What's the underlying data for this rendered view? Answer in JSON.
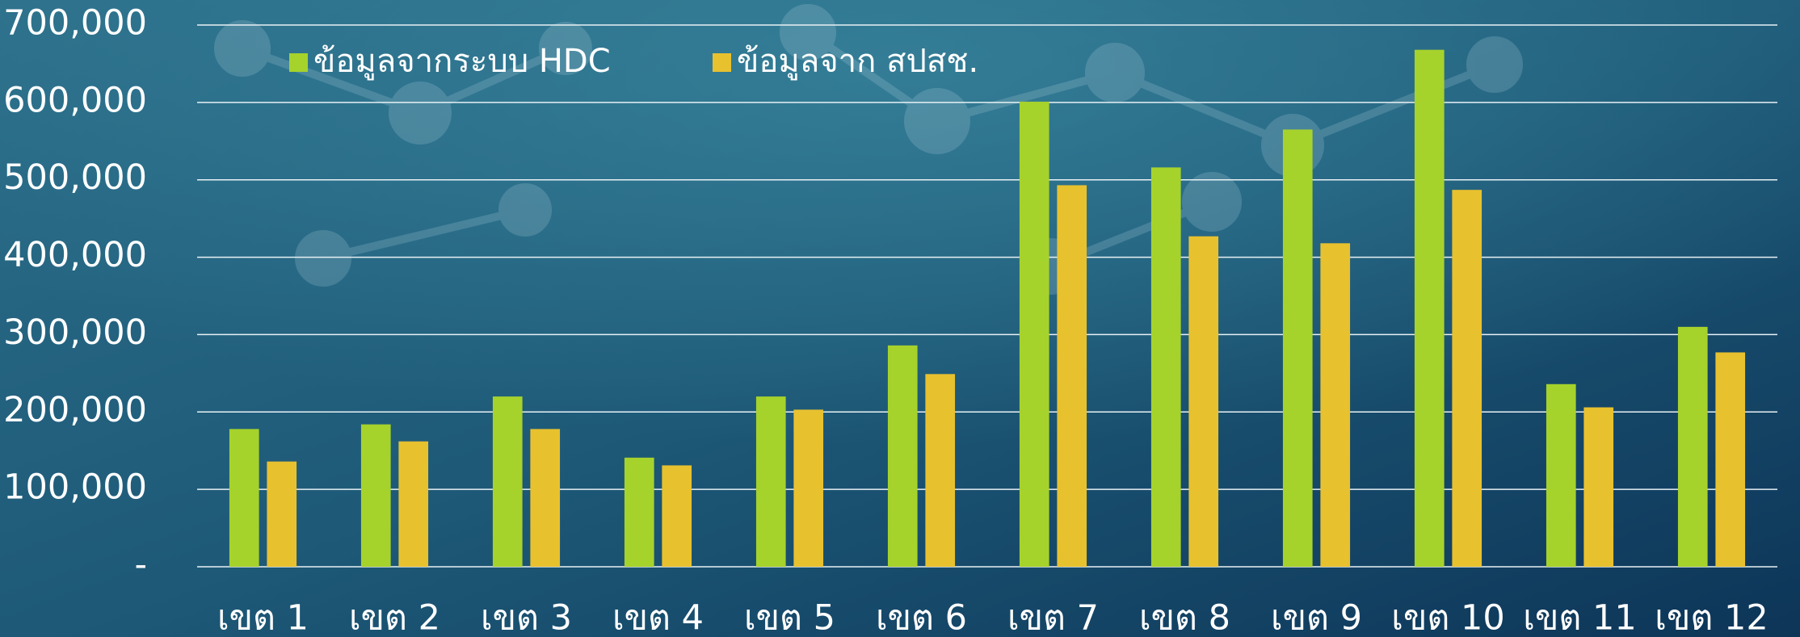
{
  "chart_data": {
    "type": "bar",
    "categories": [
      "เขต 1",
      "เขต 2",
      "เขต 3",
      "เขต 4",
      "เขต 5",
      "เขต 6",
      "เขต 7",
      "เขต 8",
      "เขต 9",
      "เขต 10",
      "เขต 11",
      "เขต 12"
    ],
    "series": [
      {
        "name": "ข้อมูลจากระบบ HDC",
        "color": "#a6d22c",
        "values": [
          178000,
          184000,
          220000,
          141000,
          220000,
          286000,
          601000,
          516000,
          565000,
          668000,
          236000,
          310000
        ]
      },
      {
        "name": "ข้อมูลจาก สปสช.",
        "color": "#e8c12f",
        "values": [
          136000,
          162000,
          178000,
          131000,
          203000,
          249000,
          493000,
          427000,
          418000,
          487000,
          206000,
          277000
        ]
      }
    ],
    "ylim": [
      0,
      700000
    ],
    "yticks": [
      {
        "value": 0,
        "label": "-"
      },
      {
        "value": 100000,
        "label": "100,000"
      },
      {
        "value": 200000,
        "label": "200,000"
      },
      {
        "value": 300000,
        "label": "300,000"
      },
      {
        "value": 400000,
        "label": "400,000"
      },
      {
        "value": 500000,
        "label": "500,000"
      },
      {
        "value": 600000,
        "label": "600,000"
      },
      {
        "value": 700000,
        "label": "700,000"
      }
    ],
    "grid": true,
    "legend": "top-left"
  }
}
